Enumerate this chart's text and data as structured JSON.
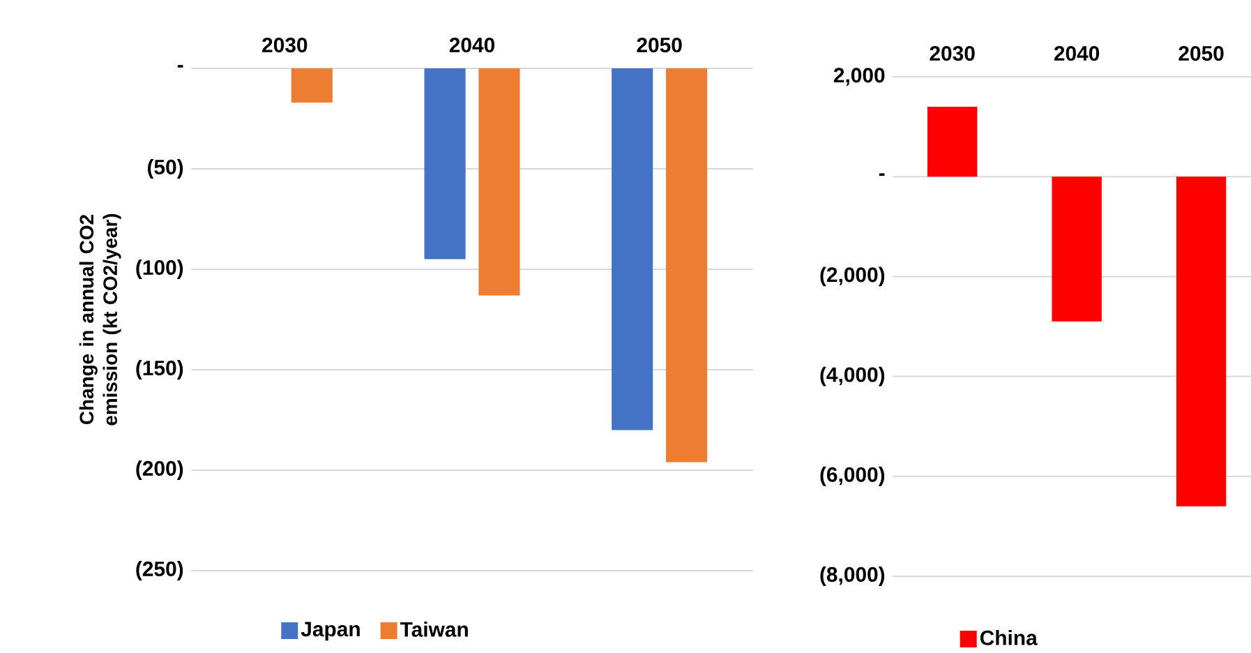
{
  "chart_data": [
    {
      "type": "bar",
      "ylabel": "Change in annual CO2 emission (kt CO2/year)",
      "categories": [
        "2030",
        "2040",
        "2050"
      ],
      "series": [
        {
          "name": "Japan",
          "color": "#4472c4",
          "values": [
            0,
            -95,
            -180
          ]
        },
        {
          "name": "Taiwan",
          "color": "#ed7d31",
          "values": [
            -17,
            -113,
            -196
          ]
        }
      ],
      "ylim": [
        -250,
        0
      ],
      "yticks": [
        {
          "value": 0,
          "label": "-"
        },
        {
          "value": -50,
          "label": "(50)"
        },
        {
          "value": -100,
          "label": "(100)"
        },
        {
          "value": -150,
          "label": "(150)"
        },
        {
          "value": -200,
          "label": "(200)"
        },
        {
          "value": -250,
          "label": "(250)"
        }
      ],
      "grid": "y",
      "legend": "bottom"
    },
    {
      "type": "bar",
      "categories": [
        "2030",
        "2040",
        "2050"
      ],
      "series": [
        {
          "name": "China",
          "color": "#ff0000",
          "values": [
            1400,
            -2900,
            -6600
          ]
        }
      ],
      "ylim": [
        -8000,
        2000
      ],
      "yticks": [
        {
          "value": 2000,
          "label": "2,000"
        },
        {
          "value": 0,
          "label": "-"
        },
        {
          "value": -2000,
          "label": "(2,000)"
        },
        {
          "value": -4000,
          "label": "(4,000)"
        },
        {
          "value": -6000,
          "label": "(6,000)"
        },
        {
          "value": -8000,
          "label": "(8,000)"
        }
      ],
      "grid": "y",
      "legend": "bottom"
    }
  ]
}
